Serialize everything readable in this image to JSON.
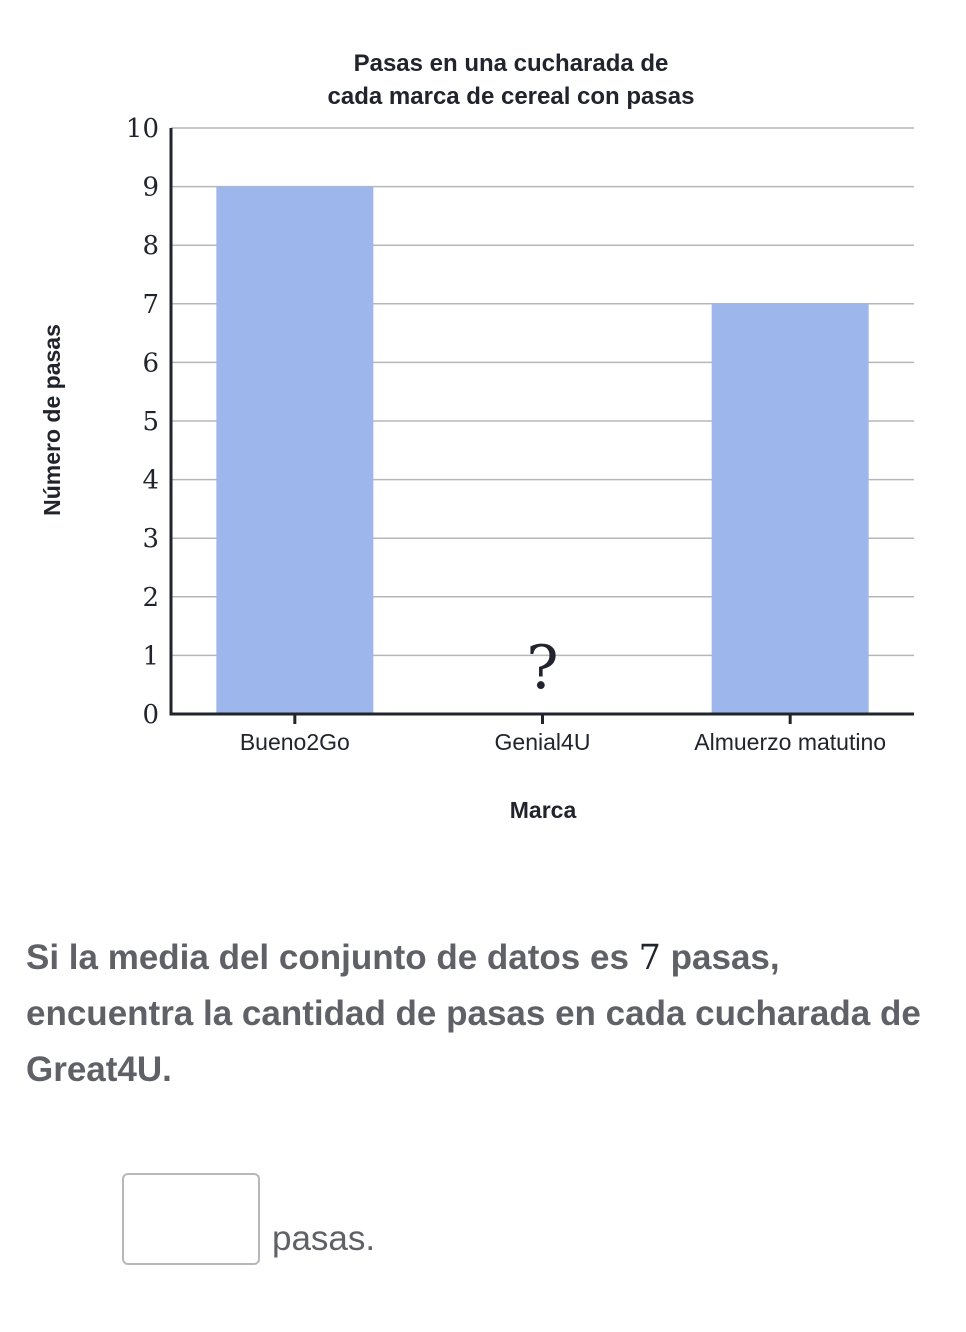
{
  "chart_data": {
    "type": "bar",
    "title_lines": [
      "Pasas en una cucharada de",
      "cada marca de cereal con pasas"
    ],
    "xlabel": "Marca",
    "ylabel": "Número de pasas",
    "categories": [
      "Bueno2Go",
      "Genial4U",
      "Almuerzo matutino"
    ],
    "values": [
      9,
      null,
      7
    ],
    "unknown_marker": "?",
    "ylim": [
      0,
      10
    ],
    "yticks": [
      "0",
      "1",
      "2",
      "3",
      "4",
      "5",
      "6",
      "7",
      "8",
      "9",
      "10"
    ],
    "grid": true,
    "bar_color": "#9db7ec"
  },
  "question": {
    "part1": "Si la media del conjunto de datos es ",
    "mean_value": "7",
    "part2": " pasas, encuentra la cantidad de pasas en cada cucharada de Great4U."
  },
  "answer": {
    "placeholder": "",
    "unit": "pasas."
  }
}
